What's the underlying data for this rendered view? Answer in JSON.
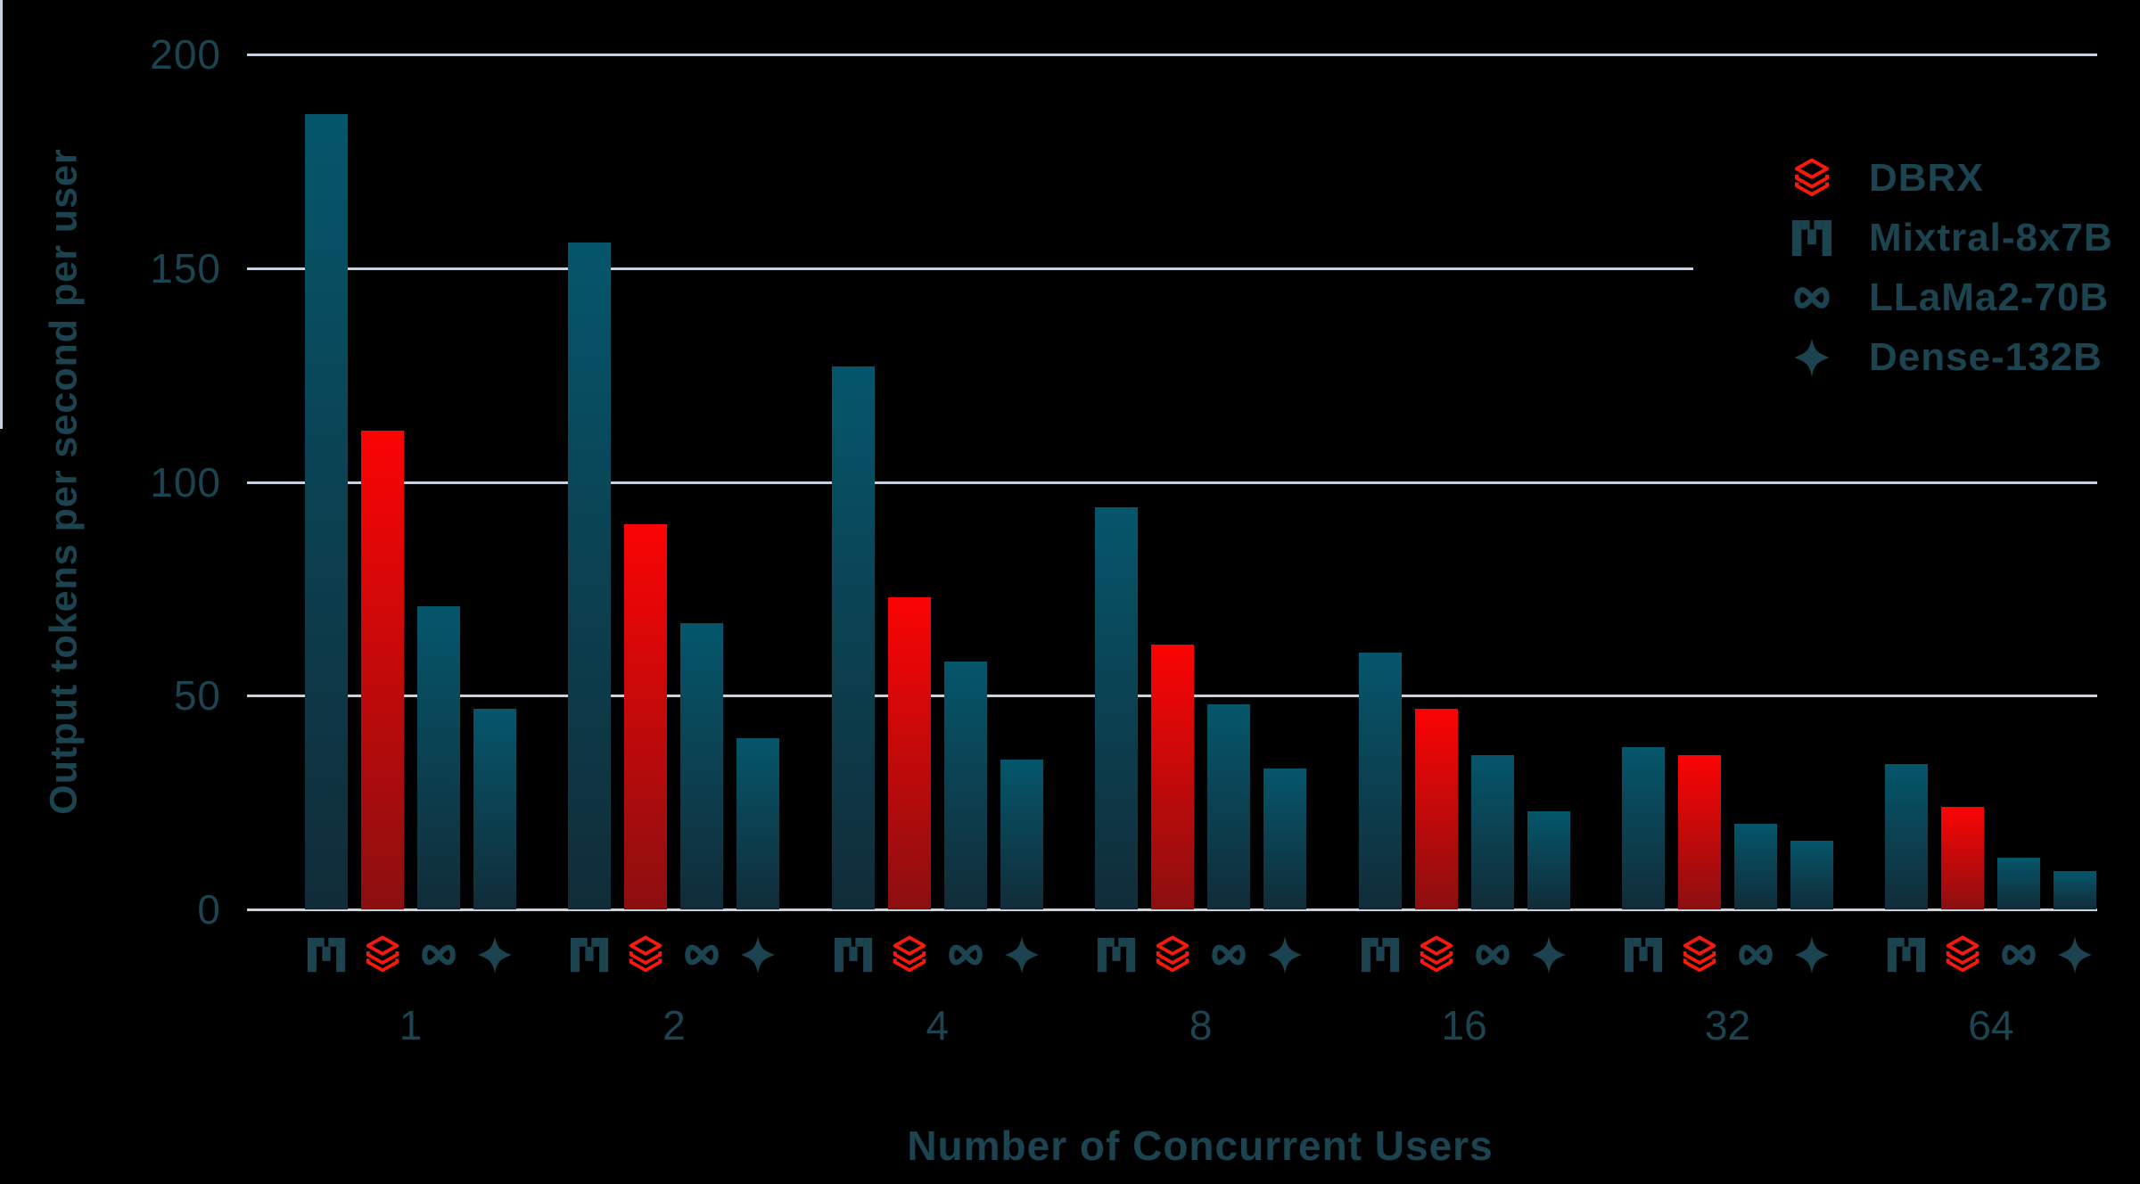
{
  "colors": {
    "background": "#000000",
    "grid": "#c9d2dc",
    "text": "#1b4450",
    "teal_bar_top": "#05566b",
    "teal_bar_bottom": "#112c38",
    "red_bar_top": "#fb0404",
    "red_bar_bottom": "#8c0f10",
    "brand_red": "#f9180c"
  },
  "chart_data": {
    "type": "bar",
    "title": "",
    "xlabel": "Number of Concurrent Users",
    "ylabel": "Output tokens per second per user",
    "categories": [
      "1",
      "2",
      "4",
      "8",
      "16",
      "32",
      "64"
    ],
    "yticks": [
      0,
      50,
      100,
      150,
      200
    ],
    "ylim": [
      0,
      200
    ],
    "grid": true,
    "bar_order": [
      "Mixtral-8x7B",
      "DBRX",
      "LLaMa2-70B",
      "Dense-132B"
    ],
    "series": [
      {
        "name": "Mixtral-8x7B",
        "icon": "mixtral-icon",
        "style": "teal",
        "values": [
          186,
          156,
          127,
          94,
          60,
          38,
          34
        ]
      },
      {
        "name": "DBRX",
        "icon": "databricks-icon",
        "style": "red",
        "values": [
          112,
          90,
          73,
          62,
          47,
          36,
          24
        ]
      },
      {
        "name": "LLaMa2-70B",
        "icon": "meta-icon",
        "style": "teal",
        "values": [
          71,
          67,
          58,
          48,
          36,
          20,
          12
        ]
      },
      {
        "name": "Dense-132B",
        "icon": "sparkle-icon",
        "style": "teal",
        "values": [
          47,
          40,
          35,
          33,
          23,
          16,
          9
        ]
      }
    ],
    "legend": {
      "position": "top-right",
      "entries": [
        "DBRX",
        "Mixtral-8x7B",
        "LLaMa2-70B",
        "Dense-132B"
      ]
    }
  }
}
